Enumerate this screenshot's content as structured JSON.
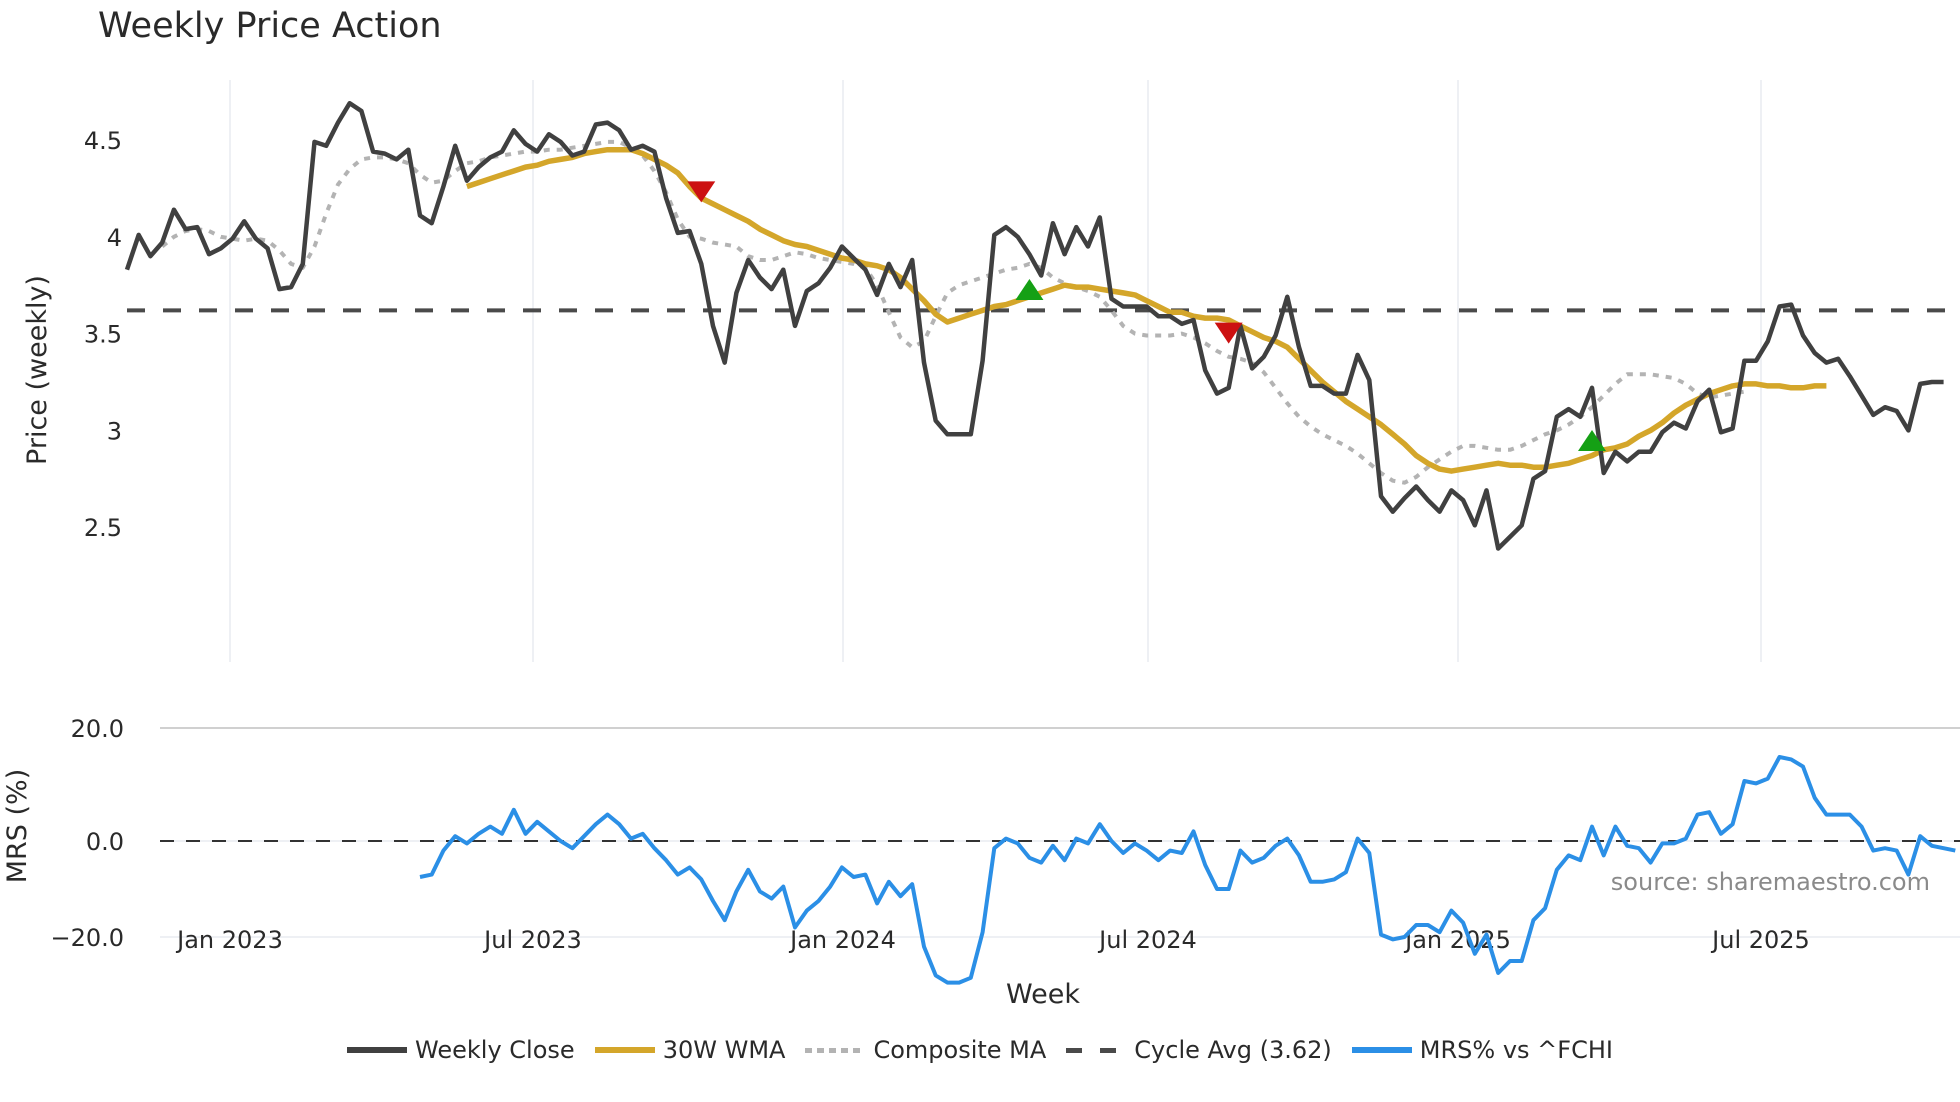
{
  "title": "Weekly Price Action",
  "source": "source: sharemaestro.com",
  "legend": [
    {
      "label": "Weekly Close",
      "color": "#404040",
      "style": "solid"
    },
    {
      "label": "30W WMA",
      "color": "#d4a62a",
      "style": "solid"
    },
    {
      "label": "Composite MA",
      "color": "#b3b3b3",
      "style": "dotted"
    },
    {
      "label": "Cycle Avg (3.62)",
      "color": "#4a4a4a",
      "style": "dashed"
    },
    {
      "label": "MRS% vs ^FCHI",
      "color": "#2b8fe6",
      "style": "solid"
    }
  ],
  "chart_data": [
    {
      "type": "line",
      "title": "Weekly Price Action",
      "xlabel": "Week",
      "ylabel": "Price (weekly)",
      "x_tick_labels": [
        "Jan 2023",
        "Jul 2023",
        "Jan 2024",
        "Jul 2024",
        "Jan 2025",
        "Jul 2025"
      ],
      "y_ticks": [
        2.5,
        3,
        3.5,
        4,
        4.5
      ],
      "y_tick_labels": [
        "2.5",
        "3",
        "3.5",
        "4",
        "4.5"
      ],
      "ylim": [
        2.28,
        4.82
      ],
      "grid": "vertical",
      "legend_position": "bottom",
      "reference_line": {
        "label": "Cycle Avg (3.62)",
        "value": 3.62
      },
      "series": [
        {
          "name": "Weekly Close",
          "start_index": 0,
          "values": [
            3.83,
            4.01,
            3.9,
            3.97,
            4.14,
            4.04,
            4.05,
            3.91,
            3.94,
            3.99,
            4.08,
            3.99,
            3.94,
            3.73,
            3.74,
            3.86,
            4.49,
            4.47,
            4.59,
            4.69,
            4.65,
            4.44,
            4.43,
            4.4,
            4.45,
            4.11,
            4.07,
            4.26,
            4.47,
            4.29,
            4.36,
            4.41,
            4.44,
            4.55,
            4.48,
            4.44,
            4.53,
            4.49,
            4.42,
            4.44,
            4.58,
            4.59,
            4.55,
            4.45,
            4.47,
            4.44,
            4.2,
            4.02,
            4.03,
            3.86,
            3.54,
            3.35,
            3.71,
            3.88,
            3.79,
            3.73,
            3.83,
            3.54,
            3.72,
            3.76,
            3.84,
            3.95,
            3.89,
            3.83,
            3.7,
            3.86,
            3.74,
            3.88,
            3.35,
            3.05,
            2.98,
            2.98,
            2.98,
            3.36,
            4.01,
            4.05,
            4.0,
            3.91,
            3.8,
            4.07,
            3.91,
            4.05,
            3.95,
            4.1,
            3.68,
            3.64,
            3.64,
            3.64,
            3.59,
            3.59,
            3.55,
            3.57,
            3.31,
            3.19,
            3.22,
            3.54,
            3.32,
            3.38,
            3.49,
            3.69,
            3.43,
            3.23,
            3.23,
            3.19,
            3.19,
            3.39,
            3.26,
            2.66,
            2.58,
            2.65,
            2.71,
            2.64,
            2.58,
            2.69,
            2.64,
            2.51,
            2.69,
            2.39,
            2.45,
            2.51,
            2.75,
            2.79,
            3.07,
            3.11,
            3.07,
            3.22,
            2.78,
            2.89,
            2.84,
            2.89,
            2.89,
            2.99,
            3.04,
            3.01,
            3.15,
            3.21,
            2.99,
            3.01,
            3.36,
            3.36,
            3.46,
            3.64,
            3.65,
            3.49,
            3.4,
            3.35,
            3.37,
            3.28,
            3.18,
            3.08,
            3.12,
            3.1,
            3.0,
            3.24,
            3.25,
            3.25
          ]
        },
        {
          "name": "30W WMA",
          "start_index": 29,
          "values": [
            4.26,
            4.28,
            4.3,
            4.32,
            4.34,
            4.36,
            4.37,
            4.39,
            4.4,
            4.41,
            4.43,
            4.44,
            4.45,
            4.45,
            4.45,
            4.43,
            4.4,
            4.37,
            4.33,
            4.26,
            4.2,
            4.17,
            4.14,
            4.11,
            4.08,
            4.04,
            4.01,
            3.98,
            3.96,
            3.95,
            3.93,
            3.91,
            3.89,
            3.88,
            3.86,
            3.85,
            3.83,
            3.79,
            3.73,
            3.67,
            3.6,
            3.56,
            3.58,
            3.6,
            3.62,
            3.64,
            3.65,
            3.67,
            3.69,
            3.71,
            3.73,
            3.75,
            3.74,
            3.74,
            3.73,
            3.72,
            3.71,
            3.7,
            3.67,
            3.64,
            3.61,
            3.61,
            3.59,
            3.58,
            3.58,
            3.57,
            3.54,
            3.51,
            3.48,
            3.46,
            3.43,
            3.37,
            3.31,
            3.25,
            3.2,
            3.15,
            3.11,
            3.07,
            3.03,
            2.98,
            2.93,
            2.87,
            2.83,
            2.8,
            2.79,
            2.8,
            2.81,
            2.82,
            2.83,
            2.82,
            2.82,
            2.81,
            2.81,
            2.82,
            2.83,
            2.85,
            2.87,
            2.9,
            2.91,
            2.93,
            2.97,
            3.0,
            3.04,
            3.09,
            3.13,
            3.16,
            3.19,
            3.21,
            3.23,
            3.24,
            3.24,
            3.23,
            3.23,
            3.22,
            3.22,
            3.23,
            3.23
          ]
        },
        {
          "name": "Composite MA",
          "start_index": 3,
          "values": [
            3.95,
            4.0,
            4.03,
            4.04,
            4.03,
            4.0,
            3.99,
            3.98,
            3.99,
            3.98,
            3.93,
            3.86,
            3.84,
            3.95,
            4.12,
            4.27,
            4.35,
            4.4,
            4.41,
            4.41,
            4.4,
            4.38,
            4.32,
            4.28,
            4.29,
            4.34,
            4.38,
            4.39,
            4.41,
            4.42,
            4.43,
            4.44,
            4.44,
            4.45,
            4.45,
            4.46,
            4.47,
            4.48,
            4.49,
            4.49,
            4.46,
            4.42,
            4.34,
            4.23,
            4.09,
            4.0,
            3.99,
            3.97,
            3.96,
            3.95,
            3.9,
            3.88,
            3.88,
            3.9,
            3.92,
            3.91,
            3.89,
            3.88,
            3.87,
            3.86,
            3.84,
            3.75,
            3.61,
            3.48,
            3.43,
            3.46,
            3.59,
            3.71,
            3.75,
            3.77,
            3.79,
            3.81,
            3.83,
            3.84,
            3.86,
            3.84,
            3.79,
            3.76,
            3.74,
            3.72,
            3.69,
            3.62,
            3.54,
            3.5,
            3.49,
            3.49,
            3.49,
            3.5,
            3.48,
            3.45,
            3.41,
            3.38,
            3.37,
            3.35,
            3.3,
            3.22,
            3.14,
            3.07,
            3.02,
            2.98,
            2.95,
            2.92,
            2.88,
            2.83,
            2.78,
            2.74,
            2.73,
            2.76,
            2.81,
            2.85,
            2.89,
            2.92,
            2.92,
            2.91,
            2.9,
            2.9,
            2.92,
            2.95,
            2.98,
            3.0,
            3.03,
            3.07,
            3.12,
            3.18,
            3.24,
            3.29,
            3.29,
            3.29,
            3.28,
            3.27,
            3.24,
            3.19,
            3.17,
            3.18,
            3.19,
            3.2
          ]
        },
        {
          "name": "MRS% vs ^FCHI",
          "start_index": 25,
          "values": [
            -7.5,
            -7.0,
            -2.0,
            1.0,
            -0.5,
            1.5,
            3.0,
            1.5,
            6.5,
            1.5,
            4.0,
            2.0,
            0.0,
            -1.5,
            1.0,
            3.5,
            5.5,
            3.5,
            0.5,
            1.5,
            -1.5,
            -4.0,
            -7.0,
            -5.5,
            -8.0,
            -12.5,
            -16.5,
            -10.5,
            -6.0,
            -10.5,
            -12.0,
            -9.5,
            -18.0,
            -14.5,
            -12.5,
            -9.5,
            -5.5,
            -7.5,
            -7.0,
            -13.0,
            -8.5,
            -11.5,
            -9.0,
            -22.0,
            -28.0,
            -29.5,
            -29.5,
            -28.5,
            -19.0,
            -1.5,
            0.5,
            -0.5,
            -3.5,
            -4.5,
            -1.0,
            -4.0,
            0.5,
            -0.5,
            3.5,
            0.0,
            -2.5,
            -0.5,
            -2.0,
            -4.0,
            -2.0,
            -2.5,
            2.0,
            -5.0,
            -10.0,
            -10.0,
            -2.0,
            -4.5,
            -3.5,
            -1.0,
            0.5,
            -3.0,
            -8.5,
            -8.5,
            -8.0,
            -6.5,
            0.5,
            -2.5,
            -19.5,
            -20.5,
            -20.0,
            -17.5,
            -17.5,
            -19.0,
            -14.5,
            -17.0,
            -23.5,
            -19.5,
            -27.5,
            -25.0,
            -25.0,
            -16.5,
            -14.0,
            -6.0,
            -3.0,
            -4.0,
            3.0,
            -3.0,
            3.0,
            -1.0,
            -1.5,
            -4.5,
            -0.5,
            -0.5,
            0.5,
            5.5,
            6.0,
            1.5,
            3.5,
            12.5,
            12.0,
            13.0,
            17.5,
            17.0,
            15.5,
            9.0,
            5.5,
            5.5,
            5.5,
            3.0,
            -2.0,
            -1.5,
            -2.0,
            -7.0,
            1.0,
            -1.0,
            -1.5,
            -2.0
          ]
        }
      ],
      "markers": [
        {
          "type": "sell",
          "shape": "triangle-down",
          "color": "#cc1111",
          "index": 49,
          "value": 4.24
        },
        {
          "type": "buy",
          "shape": "triangle-up",
          "color": "#15a015",
          "index": 77,
          "value": 3.72
        },
        {
          "type": "sell",
          "shape": "triangle-down",
          "color": "#cc1111",
          "index": 94,
          "value": 3.51
        },
        {
          "type": "buy",
          "shape": "triangle-up",
          "color": "#15a015",
          "index": 125,
          "value": 2.94
        }
      ]
    },
    {
      "type": "line",
      "xlabel": "Week",
      "ylabel": "MRS (%)",
      "y_ticks": [
        -20,
        0,
        20
      ],
      "y_tick_labels": [
        "−20.0",
        "0.0",
        "20.0"
      ],
      "ylim": [
        -32,
        22
      ],
      "reference_line": {
        "value": 0
      },
      "series_ref": "MRS% vs ^FCHI"
    }
  ]
}
